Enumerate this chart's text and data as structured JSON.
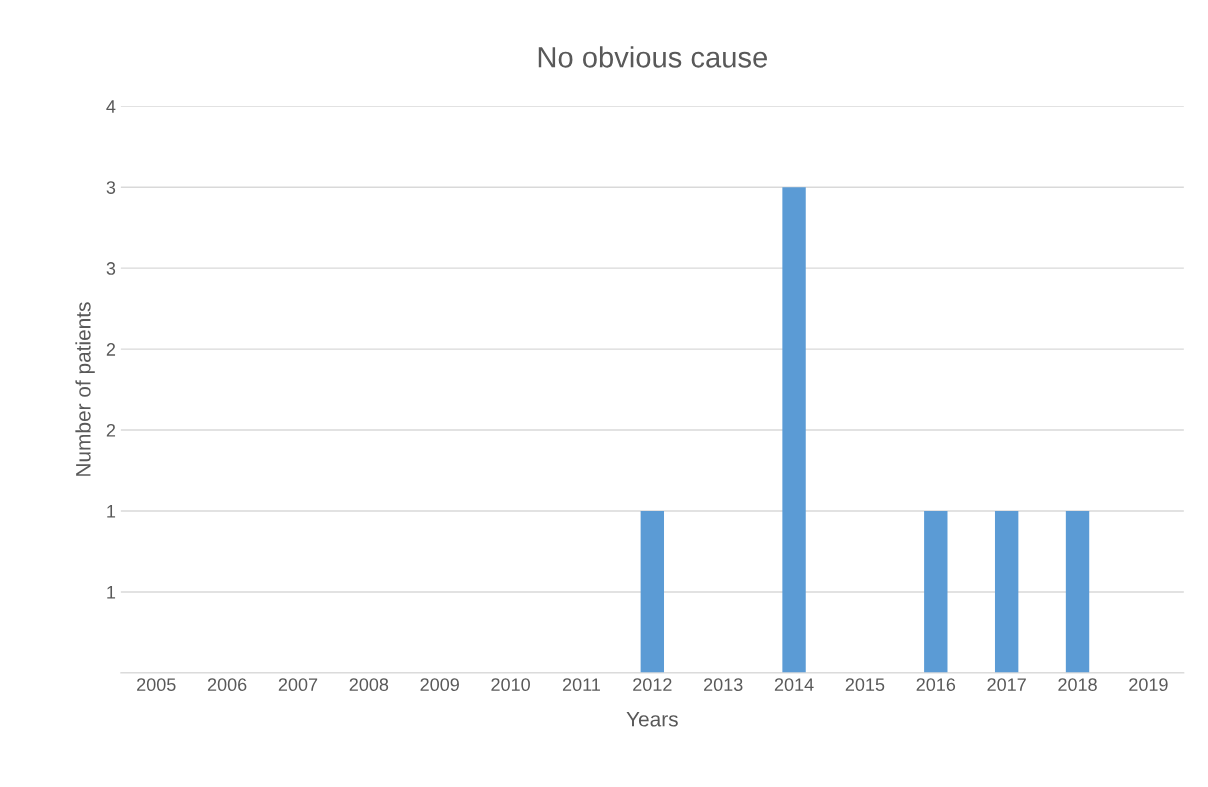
{
  "chart_data": {
    "type": "bar",
    "title": "No obvious cause",
    "xlabel": "Years",
    "ylabel": "Number of patients",
    "categories": [
      "2005",
      "2006",
      "2007",
      "2008",
      "2009",
      "2010",
      "2011",
      "2012",
      "2013",
      "2014",
      "2015",
      "2016",
      "2017",
      "2018",
      "2019"
    ],
    "values": [
      0,
      0,
      0,
      0,
      0,
      0,
      0,
      1,
      0,
      3,
      0,
      1,
      1,
      1,
      0
    ],
    "color": "#5b9bd5",
    "ylim": [
      0,
      3.5
    ],
    "yticks": [
      {
        "value": 0,
        "label": null
      },
      {
        "value": 0.5,
        "label": "1"
      },
      {
        "value": 1,
        "label": "1"
      },
      {
        "value": 1.5,
        "label": "2"
      },
      {
        "value": 2,
        "label": "2"
      },
      {
        "value": 2.5,
        "label": "3"
      },
      {
        "value": 3,
        "label": "3"
      },
      {
        "value": 3.5,
        "label": "4"
      }
    ],
    "grid": "y",
    "legend": false
  }
}
